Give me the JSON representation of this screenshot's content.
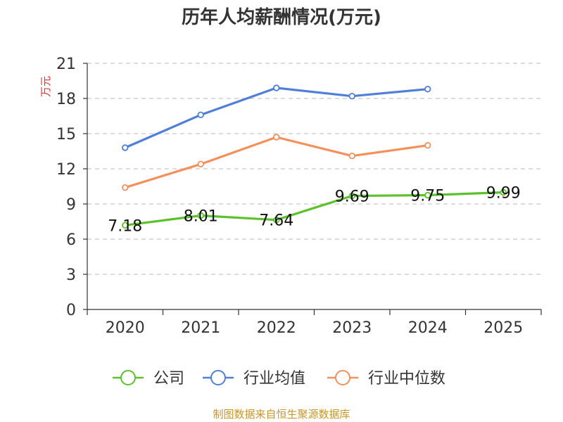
{
  "chart_data": {
    "type": "line",
    "title": "历年人均薪酬情况(万元)",
    "ylabel": "万元",
    "xlabel": "",
    "ylim": [
      0,
      21
    ],
    "yticks": [
      0,
      3,
      6,
      9,
      12,
      15,
      18,
      21
    ],
    "grid": true,
    "categories": [
      "2020",
      "2021",
      "2022",
      "2023",
      "2024",
      "2025"
    ],
    "series": [
      {
        "name": "公司",
        "color": "#5bc22c",
        "values": [
          7.18,
          8.01,
          7.64,
          9.69,
          9.75,
          9.99
        ],
        "labels": [
          "7.18",
          "8.01",
          "7.64",
          "9.69",
          "9.75",
          "9.99"
        ]
      },
      {
        "name": "行业均值",
        "color": "#4f7fd8",
        "values": [
          13.8,
          16.6,
          18.9,
          18.2,
          18.8,
          null
        ]
      },
      {
        "name": "行业中位数",
        "color": "#f5905a",
        "values": [
          10.4,
          12.4,
          14.7,
          13.1,
          14.0,
          null
        ]
      }
    ],
    "legend": "bottom",
    "source": "制图数据来自恒生聚源数据库"
  }
}
